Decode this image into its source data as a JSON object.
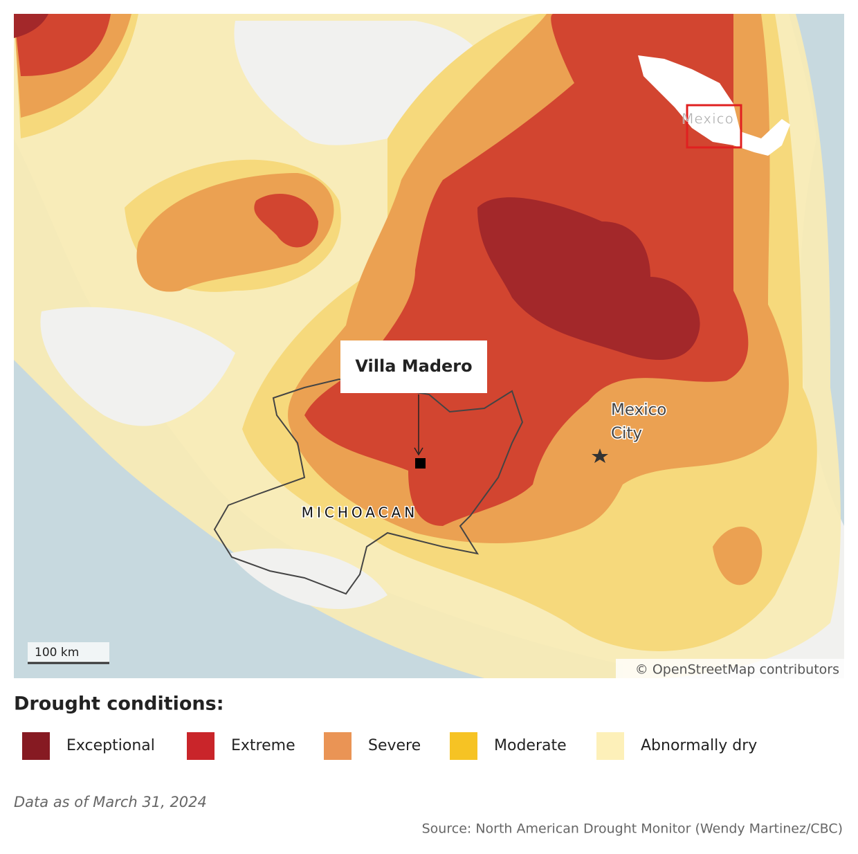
{
  "map": {
    "town": "Villa Madero",
    "state": "MICHOACAN",
    "capital": [
      "Mexico",
      "City"
    ],
    "inset": "Mexico",
    "scale": "100 km",
    "attribution": "© OpenStreetMap contributors"
  },
  "legend": {
    "title": "Drought conditions:",
    "items": [
      {
        "label": "Exceptional",
        "color": "#861a22"
      },
      {
        "label": "Extreme",
        "color": "#c9252a"
      },
      {
        "label": "Severe",
        "color": "#ea9455"
      },
      {
        "label": "Moderate",
        "color": "#f6c324"
      },
      {
        "label": "Abnormally dry",
        "color": "#fdf0b9"
      }
    ]
  },
  "note": "Data as of March 31, 2024",
  "source": "Source: North American Drought Monitor (Wendy Martinez/CBC)"
}
